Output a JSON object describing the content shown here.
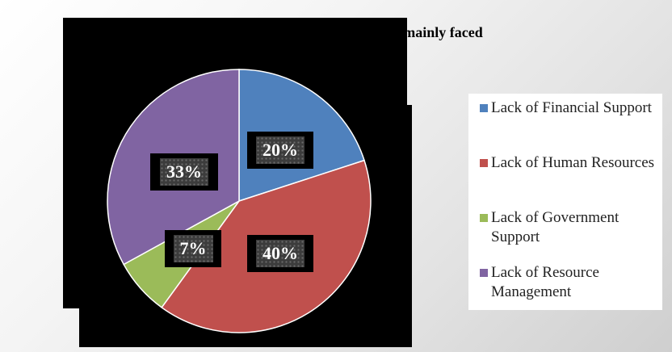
{
  "chart_data": {
    "type": "pie",
    "title": "No. of Respondents on Challenges mainly faced",
    "slices": [
      {
        "name": "Lack of Financial Support",
        "value": 20,
        "label": "20%",
        "color": "#4f81bd"
      },
      {
        "name": "Lack of Human Resources",
        "value": 40,
        "label": "40%",
        "color": "#c0504d"
      },
      {
        "name": "Lack of Government Support",
        "value": 7,
        "label": "7%",
        "color": "#9bbb59"
      },
      {
        "name": "Lack of Resource Management",
        "value": 33,
        "label": "33%",
        "color": "#8064a2"
      }
    ],
    "legend_position": "right"
  }
}
